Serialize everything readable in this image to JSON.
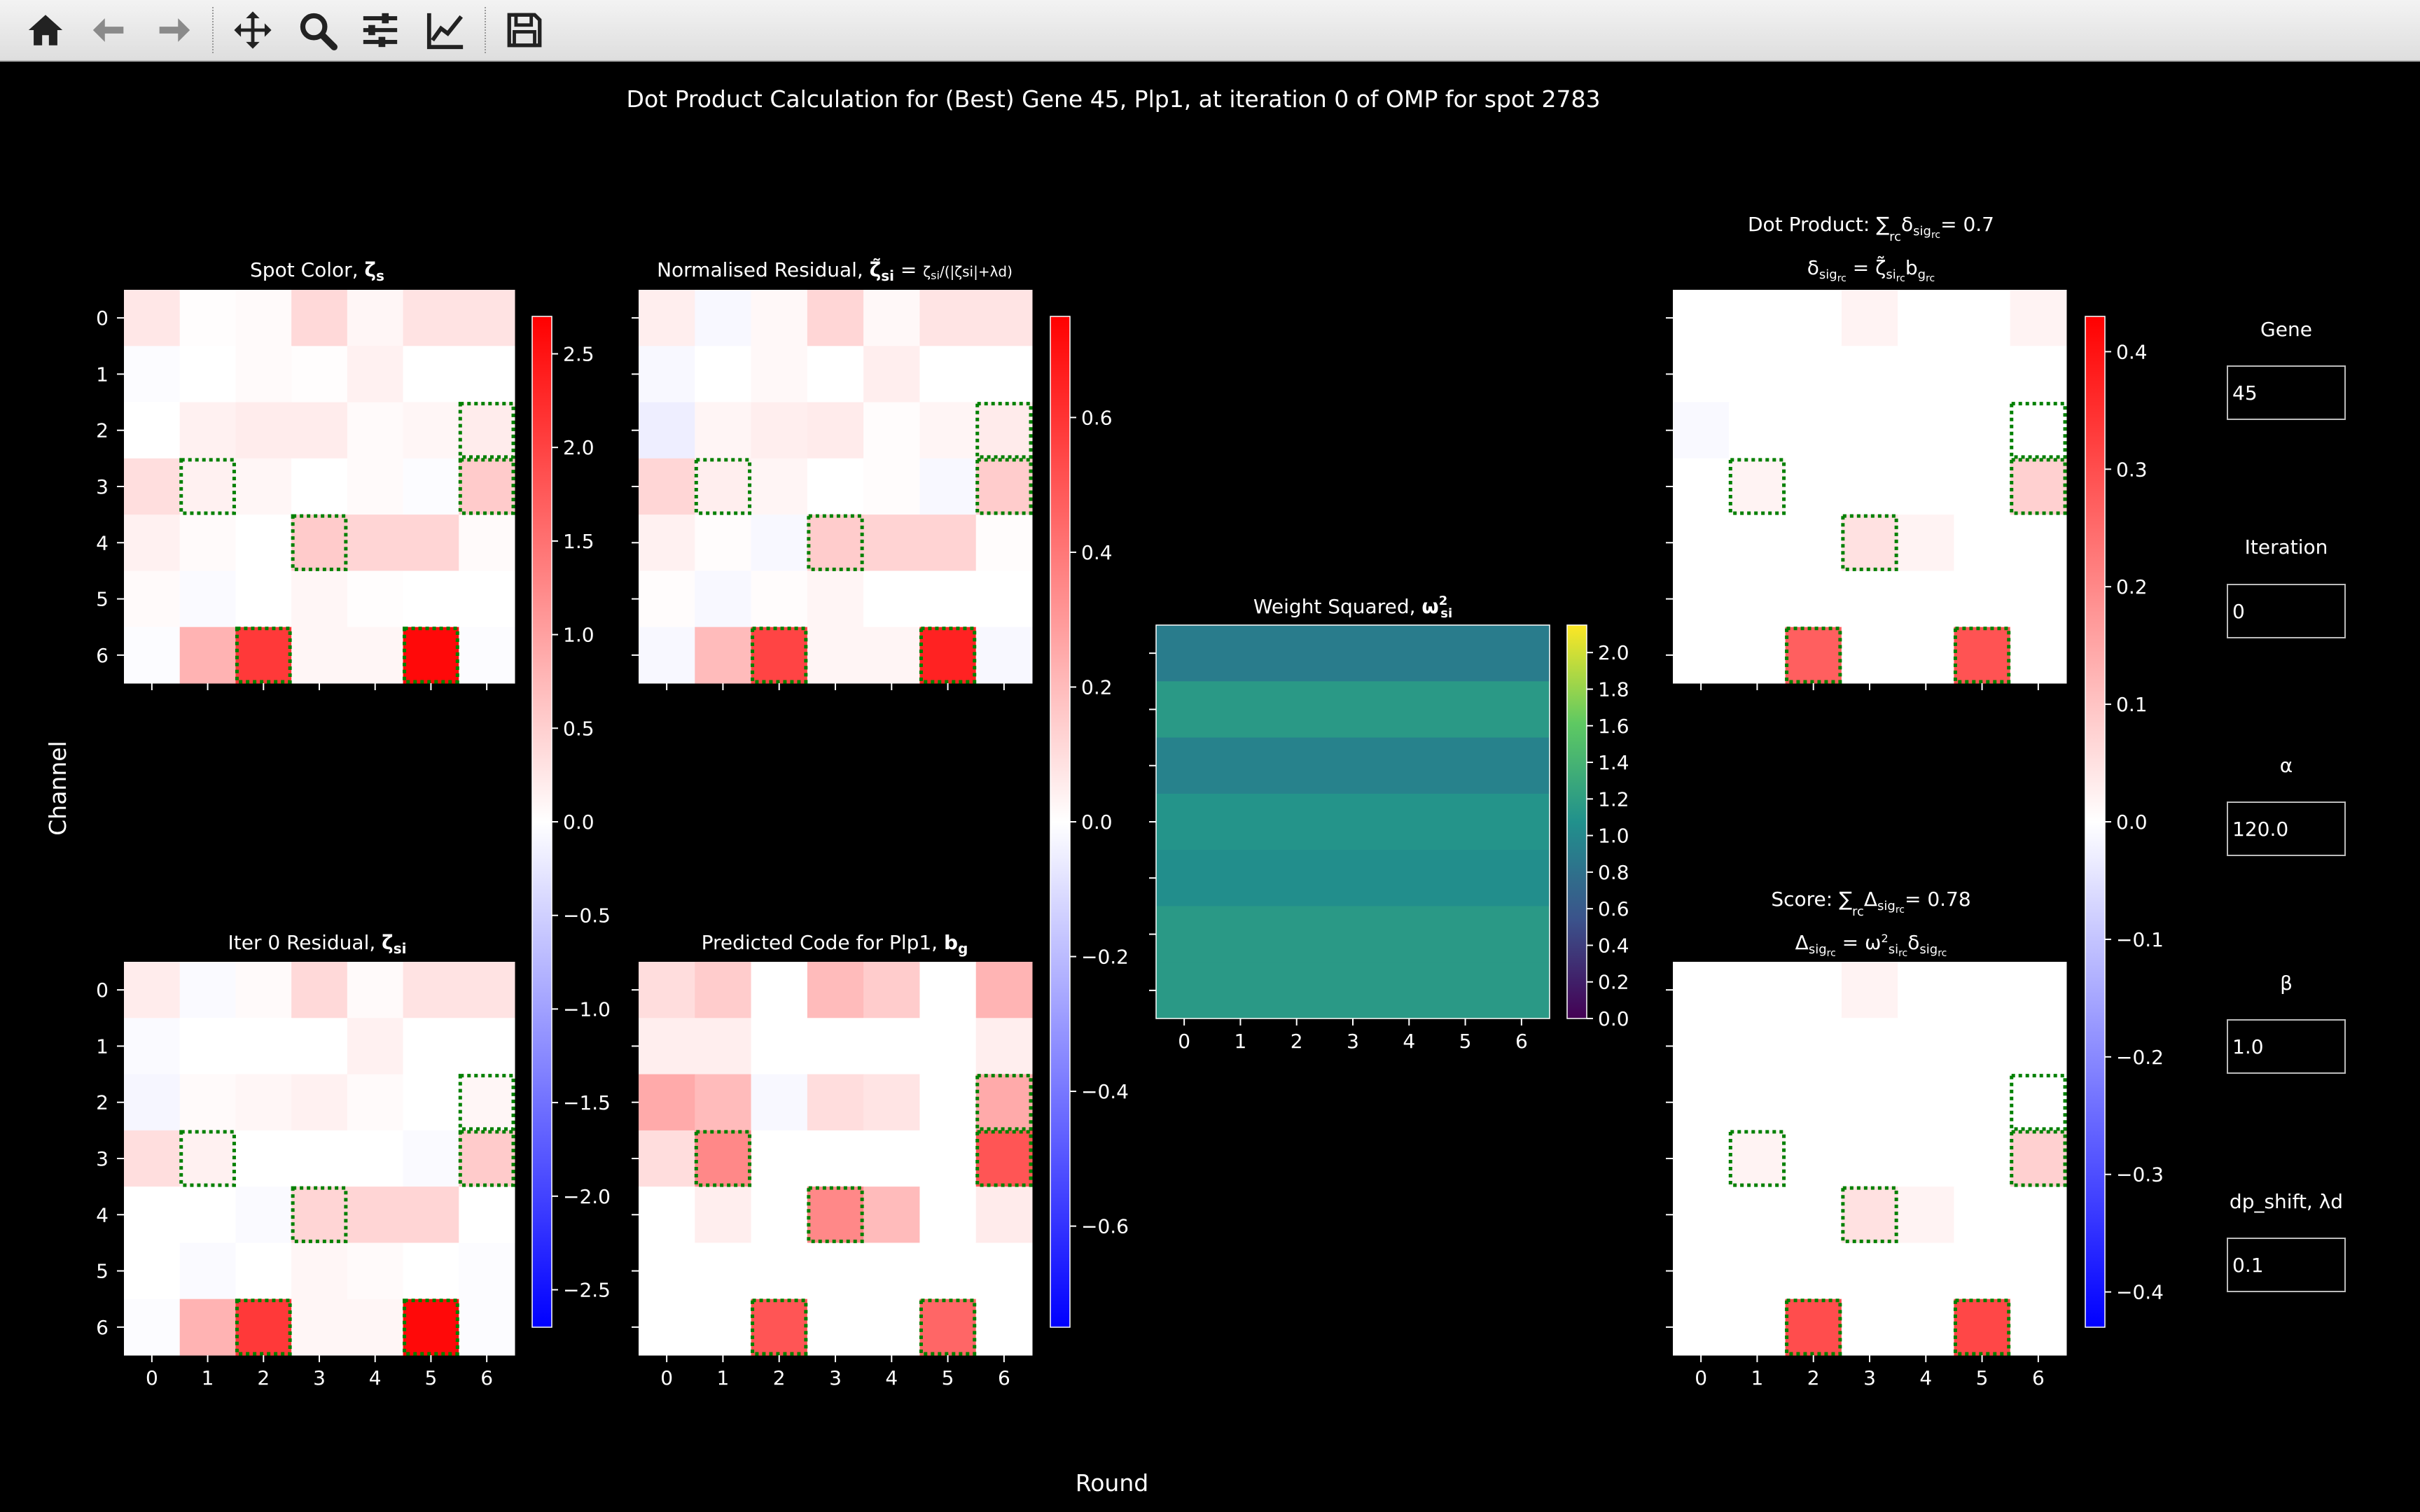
{
  "toolbar": {
    "buttons": [
      {
        "name": "home-button",
        "icon": "home-icon"
      },
      {
        "name": "back-button",
        "icon": "arrow-left-icon"
      },
      {
        "name": "forward-button",
        "icon": "arrow-right-icon"
      },
      {
        "name": "pan-button",
        "icon": "move-icon"
      },
      {
        "name": "zoom-button",
        "icon": "magnifier-icon"
      },
      {
        "name": "configure-subplots-button",
        "icon": "sliders-icon"
      },
      {
        "name": "edit-axis-button",
        "icon": "trend-line-icon"
      },
      {
        "name": "save-button",
        "icon": "floppy-disk-icon"
      }
    ]
  },
  "figure": {
    "title": "Dot Product Calculation for (Best) Gene 45, Plp1, at iteration 0 of OMP for spot 2783",
    "xlabel": "Round",
    "ylabel": "Channel",
    "panel_titles": {
      "spot_color": "Spot Color, ζs",
      "norm_residual": "Normalised Residual, ζ̃si = ζsi / (|ζsi| + λd)",
      "iter_residual": "Iter 0 Residual, ζsi",
      "predicted_code": "Predicted Code for Plp1, bg",
      "weight": "Weight Squared, ω²si",
      "dot_product_1": "Dot Product: ∑rc δsigrc = 0.7",
      "dot_product_2": "δsigrc = ζ̃sirc bgrc",
      "score_1": "Score: ∑rc Δsigrc = 0.78",
      "score_2": "Δsigrc = ω²sirc δsigrc"
    },
    "colors": {
      "positive": "#ff0000",
      "negative": "#0000ff",
      "neutral": "#ffffff",
      "highlight_box": "#008000"
    }
  },
  "controls": [
    {
      "label": "Gene",
      "value": "45"
    },
    {
      "label": "Iteration",
      "value": "0"
    },
    {
      "label": "α",
      "value": "120.0"
    },
    {
      "label": "β",
      "value": "1.0"
    },
    {
      "label": "dp_shift, λd",
      "value": "0.1"
    }
  ],
  "chart_data": [
    {
      "type": "heatmap",
      "id": "spot_color",
      "title": "Spot Color, ζs",
      "rows": [
        "0",
        "1",
        "2",
        "3",
        "4",
        "5",
        "6"
      ],
      "cols": [
        "0",
        "1",
        "2",
        "3",
        "4",
        "5",
        "6"
      ],
      "values": [
        [
          0.25,
          0.02,
          0.05,
          0.4,
          0.1,
          0.3,
          0.3
        ],
        [
          -0.03,
          0.0,
          0.05,
          0.02,
          0.15,
          0.0,
          0.0
        ],
        [
          0.0,
          0.15,
          0.2,
          0.2,
          0.05,
          0.1,
          0.2
        ],
        [
          0.35,
          0.15,
          0.1,
          0.0,
          0.05,
          -0.03,
          0.55
        ],
        [
          0.15,
          0.05,
          0.0,
          0.55,
          0.45,
          0.45,
          0.05
        ],
        [
          0.05,
          -0.05,
          0.0,
          0.1,
          0.02,
          0.0,
          0.0
        ],
        [
          -0.03,
          0.8,
          2.1,
          0.1,
          0.1,
          2.6,
          -0.03
        ]
      ],
      "colorbar": {
        "min": -2.7,
        "max": 2.7,
        "ticks": [
          -2.5,
          -2.0,
          -1.5,
          -1.0,
          -0.5,
          0.0,
          0.5,
          1.0,
          1.5,
          2.0,
          2.5
        ]
      }
    },
    {
      "type": "heatmap",
      "id": "norm_residual",
      "title": "Normalised Residual",
      "values": [
        [
          0.05,
          -0.02,
          0.02,
          0.12,
          0.02,
          0.08,
          0.08
        ],
        [
          -0.02,
          0.0,
          0.02,
          0.0,
          0.05,
          0.0,
          0.0
        ],
        [
          -0.05,
          0.03,
          0.05,
          0.06,
          0.01,
          0.03,
          0.06
        ],
        [
          0.12,
          0.05,
          0.03,
          0.0,
          0.01,
          -0.02,
          0.15
        ],
        [
          0.04,
          0.01,
          -0.02,
          0.15,
          0.13,
          0.13,
          0.01
        ],
        [
          0.01,
          -0.02,
          0.01,
          0.03,
          0.0,
          0.0,
          0.0
        ],
        [
          -0.02,
          0.2,
          0.55,
          0.03,
          0.03,
          0.65,
          -0.02
        ]
      ],
      "colorbar": {
        "min": -0.75,
        "max": 0.75,
        "ticks": [
          -0.6,
          -0.4,
          -0.2,
          0.0,
          0.2,
          0.4,
          0.6
        ]
      }
    },
    {
      "type": "heatmap",
      "id": "iter_residual",
      "title": "Iter 0 Residual, ζsi",
      "values": [
        [
          0.2,
          -0.05,
          0.05,
          0.4,
          0.05,
          0.3,
          0.3
        ],
        [
          -0.05,
          0.0,
          0.0,
          0.0,
          0.15,
          0.0,
          0.0
        ],
        [
          -0.1,
          0.05,
          0.1,
          0.15,
          0.05,
          0.0,
          0.1
        ],
        [
          0.35,
          0.15,
          0.0,
          0.0,
          0.0,
          -0.05,
          0.55
        ],
        [
          0.0,
          0.0,
          -0.05,
          0.45,
          0.45,
          0.45,
          0.0
        ],
        [
          0.0,
          -0.05,
          0.0,
          0.1,
          0.05,
          0.0,
          -0.03
        ],
        [
          -0.03,
          0.8,
          2.1,
          0.1,
          0.1,
          2.6,
          -0.03
        ]
      ],
      "colorbar_shared_with": "spot_color"
    },
    {
      "type": "heatmap",
      "id": "predicted_code",
      "title": "Predicted Code for Plp1, bg",
      "values": [
        [
          0.1,
          0.15,
          0.0,
          0.2,
          0.15,
          0.0,
          0.22
        ],
        [
          0.05,
          0.05,
          0.0,
          0.0,
          0.0,
          0.0,
          0.05
        ],
        [
          0.25,
          0.2,
          -0.02,
          0.1,
          0.08,
          0.0,
          0.25
        ],
        [
          0.1,
          0.35,
          0.0,
          0.0,
          0.0,
          0.0,
          0.5
        ],
        [
          0.0,
          0.05,
          0.0,
          0.35,
          0.2,
          0.0,
          0.06
        ],
        [
          0.0,
          0.0,
          0.0,
          0.0,
          0.0,
          0.0,
          0.0
        ],
        [
          0.0,
          0.0,
          0.5,
          0.0,
          0.0,
          0.45,
          0.0
        ]
      ],
      "colorbar_shared_with": "norm_residual"
    },
    {
      "type": "heatmap",
      "id": "weight_squared",
      "title": "Weight Squared, ω²si",
      "colormap": "viridis",
      "row_values": [
        0.9,
        1.15,
        0.95,
        1.1,
        1.05,
        1.15,
        1.15
      ],
      "colorbar": {
        "min": 0.0,
        "max": 2.15,
        "ticks": [
          0.0,
          0.2,
          0.4,
          0.6,
          0.8,
          1.0,
          1.2,
          1.4,
          1.6,
          1.8,
          2.0
        ]
      }
    },
    {
      "type": "heatmap",
      "id": "dot_product",
      "title": "Dot Product: ∑rc δsigrc = 0.7",
      "values": [
        [
          0.0,
          0.0,
          0.0,
          0.02,
          0.0,
          0.0,
          0.02
        ],
        [
          0.0,
          0.0,
          0.0,
          0.0,
          0.0,
          0.0,
          0.0
        ],
        [
          -0.01,
          0.0,
          0.0,
          0.0,
          0.0,
          0.0,
          0.0
        ],
        [
          0.0,
          0.02,
          0.0,
          0.0,
          0.0,
          0.0,
          0.08
        ],
        [
          0.0,
          0.0,
          0.0,
          0.05,
          0.02,
          0.0,
          0.0
        ],
        [
          0.0,
          0.0,
          0.0,
          0.0,
          0.0,
          0.0,
          0.0
        ],
        [
          0.0,
          0.0,
          0.27,
          0.0,
          0.0,
          0.29,
          0.0
        ]
      ],
      "colorbar": {
        "min": -0.43,
        "max": 0.43,
        "ticks": [
          -0.4,
          -0.3,
          -0.2,
          -0.1,
          0.0,
          0.1,
          0.2,
          0.3,
          0.4
        ]
      }
    },
    {
      "type": "heatmap",
      "id": "score",
      "title": "Score: ∑rc Δsigrc = 0.78",
      "values": [
        [
          0.0,
          0.0,
          0.0,
          0.02,
          0.0,
          0.0,
          0.0
        ],
        [
          0.0,
          0.0,
          0.0,
          0.0,
          0.0,
          0.0,
          0.0
        ],
        [
          0.0,
          0.0,
          0.0,
          0.0,
          0.0,
          0.0,
          0.0
        ],
        [
          0.0,
          0.02,
          0.0,
          0.0,
          0.0,
          0.0,
          0.08
        ],
        [
          0.0,
          0.0,
          0.0,
          0.05,
          0.02,
          0.0,
          0.0
        ],
        [
          0.0,
          0.0,
          0.0,
          0.0,
          0.0,
          0.0,
          0.0
        ],
        [
          0.0,
          0.0,
          0.3,
          0.0,
          0.0,
          0.31,
          0.0
        ]
      ],
      "colorbar_shared_with": "dot_product"
    }
  ]
}
